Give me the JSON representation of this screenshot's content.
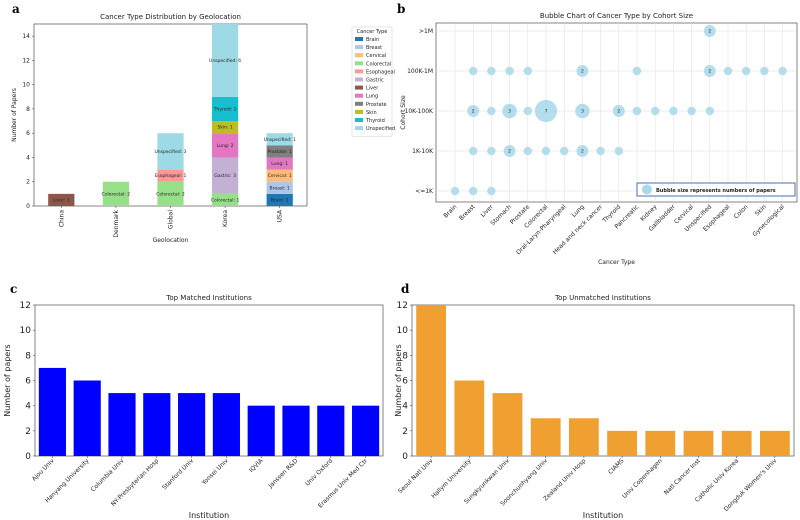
{
  "panel_labels": [
    "a",
    "b",
    "c",
    "d"
  ],
  "chart_data": [
    {
      "panel": "a",
      "type": "bar",
      "stacked": true,
      "title": "Cancer Type Distribution by Geolocation",
      "xlabel": "Geolocation",
      "ylabel": "Number of Papers",
      "ylim": [
        0,
        15
      ],
      "yticks": [
        0,
        2,
        4,
        6,
        8,
        10,
        12,
        14
      ],
      "categories": [
        "China",
        "Denmark",
        "Global",
        "Korea",
        "USA"
      ],
      "legend_title": "Cancer Type",
      "series": [
        {
          "name": "Brain",
          "color": "#1f77b4",
          "values": [
            0,
            0,
            0,
            0,
            1
          ]
        },
        {
          "name": "Breast",
          "color": "#aec7e8",
          "values": [
            0,
            0,
            0,
            0,
            1
          ]
        },
        {
          "name": "Cervical",
          "color": "#ffbb78",
          "values": [
            0,
            0,
            0,
            0,
            1
          ]
        },
        {
          "name": "Colorectal",
          "color": "#98df8a",
          "values": [
            0,
            2,
            2,
            1,
            0
          ]
        },
        {
          "name": "Esophageal",
          "color": "#ff9896",
          "values": [
            0,
            0,
            1,
            0,
            0
          ]
        },
        {
          "name": "Gastric",
          "color": "#c5b0d5",
          "values": [
            0,
            0,
            0,
            3,
            0
          ]
        },
        {
          "name": "Liver",
          "color": "#8c564b",
          "values": [
            1,
            0,
            0,
            0,
            0
          ]
        },
        {
          "name": "Lung",
          "color": "#e377c2",
          "values": [
            0,
            0,
            0,
            2,
            1
          ]
        },
        {
          "name": "Prostate",
          "color": "#7f7f7f",
          "values": [
            0,
            0,
            0,
            0,
            1
          ]
        },
        {
          "name": "Skin",
          "color": "#bcbd22",
          "values": [
            0,
            0,
            0,
            1,
            0
          ]
        },
        {
          "name": "Thyroid",
          "color": "#17becf",
          "values": [
            0,
            0,
            0,
            2,
            0
          ]
        },
        {
          "name": "Unspecified",
          "color": "#9edae5",
          "values": [
            0,
            0,
            3,
            6,
            1
          ]
        }
      ]
    },
    {
      "panel": "b",
      "type": "scatter",
      "title": "Bubble Chart of Cancer Type by Cohort Size",
      "xlabel": "Cancer Type",
      "ylabel": "Cohort Size",
      "categories": [
        "Brain",
        "Breast",
        "Liver",
        "Stomach",
        "Prostate",
        "Colorectal",
        "Oral-Laryn-Pharyngeal",
        "Lung",
        "Head and neck cancer",
        "Thyroid",
        "Pancreatic",
        "Kidney",
        "Gallbladder",
        "Cervical",
        "Unspecified",
        "Esophageal",
        "Colon",
        "Skin",
        "Gynecological"
      ],
      "y_categories": [
        "<=1K",
        "1K-10K",
        "10K-100K",
        "100K-1M",
        ">1M"
      ],
      "legend": "Bubble size represents numbers of papers",
      "color": "#a8d8ea",
      "points": [
        {
          "x": "Brain",
          "y": "<=1K",
          "n": 1
        },
        {
          "x": "Breast",
          "y": "<=1K",
          "n": 1
        },
        {
          "x": "Liver",
          "y": "<=1K",
          "n": 1
        },
        {
          "x": "Breast",
          "y": "1K-10K",
          "n": 1
        },
        {
          "x": "Liver",
          "y": "1K-10K",
          "n": 1
        },
        {
          "x": "Stomach",
          "y": "1K-10K",
          "n": 2
        },
        {
          "x": "Prostate",
          "y": "1K-10K",
          "n": 1
        },
        {
          "x": "Colorectal",
          "y": "1K-10K",
          "n": 1
        },
        {
          "x": "Oral-Laryn-Pharyngeal",
          "y": "1K-10K",
          "n": 1
        },
        {
          "x": "Lung",
          "y": "1K-10K",
          "n": 2
        },
        {
          "x": "Head and neck cancer",
          "y": "1K-10K",
          "n": 1
        },
        {
          "x": "Thyroid",
          "y": "1K-10K",
          "n": 1
        },
        {
          "x": "Breast",
          "y": "10K-100K",
          "n": 2
        },
        {
          "x": "Liver",
          "y": "10K-100K",
          "n": 1
        },
        {
          "x": "Stomach",
          "y": "10K-100K",
          "n": 3
        },
        {
          "x": "Prostate",
          "y": "10K-100K",
          "n": 1
        },
        {
          "x": "Colorectal",
          "y": "10K-100K",
          "n": 7
        },
        {
          "x": "Lung",
          "y": "10K-100K",
          "n": 3
        },
        {
          "x": "Thyroid",
          "y": "10K-100K",
          "n": 2
        },
        {
          "x": "Pancreatic",
          "y": "10K-100K",
          "n": 1
        },
        {
          "x": "Kidney",
          "y": "10K-100K",
          "n": 1
        },
        {
          "x": "Gallbladder",
          "y": "10K-100K",
          "n": 1
        },
        {
          "x": "Cervical",
          "y": "10K-100K",
          "n": 1
        },
        {
          "x": "Unspecified",
          "y": "10K-100K",
          "n": 1
        },
        {
          "x": "Breast",
          "y": "100K-1M",
          "n": 1
        },
        {
          "x": "Liver",
          "y": "100K-1M",
          "n": 1
        },
        {
          "x": "Stomach",
          "y": "100K-1M",
          "n": 1
        },
        {
          "x": "Prostate",
          "y": "100K-1M",
          "n": 1
        },
        {
          "x": "Lung",
          "y": "100K-1M",
          "n": 2
        },
        {
          "x": "Pancreatic",
          "y": "100K-1M",
          "n": 1
        },
        {
          "x": "Unspecified",
          "y": "100K-1M",
          "n": 2
        },
        {
          "x": "Esophageal",
          "y": "100K-1M",
          "n": 1
        },
        {
          "x": "Colon",
          "y": "100K-1M",
          "n": 1
        },
        {
          "x": "Skin",
          "y": "100K-1M",
          "n": 1
        },
        {
          "x": "Gynecological",
          "y": "100K-1M",
          "n": 1
        },
        {
          "x": "Unspecified",
          "y": ">1M",
          "n": 2
        }
      ]
    },
    {
      "panel": "c",
      "type": "bar",
      "title": "Top Matched Institutions",
      "xlabel": "Institution",
      "ylabel": "Number of papers",
      "ylim": [
        0,
        12
      ],
      "yticks": [
        0,
        2,
        4,
        6,
        8,
        10,
        12
      ],
      "color": "#0000ff",
      "categories": [
        "Ajou Univ",
        "Hanyang University",
        "Columbia Univ",
        "NY-Presbyterian Hosp",
        "Stanford Univ",
        "Yonsei Univ",
        "IQVIA",
        "Janssen R&D",
        "Univ Oxford",
        "Erasmus Univ Med Ctr"
      ],
      "values": [
        7,
        6,
        5,
        5,
        5,
        5,
        4,
        4,
        4,
        4
      ]
    },
    {
      "panel": "d",
      "type": "bar",
      "title": "Top Unmatched Institutions",
      "xlabel": "Institution",
      "ylabel": "Number of papers",
      "ylim": [
        0,
        12
      ],
      "yticks": [
        0,
        2,
        4,
        6,
        8,
        10,
        12
      ],
      "color": "#f0a030",
      "categories": [
        "Seoul Natl Univ",
        "Hallym University",
        "Sungkyunkwan Univ",
        "Soonchunhyang Univ",
        "Zealand Univ Hosp",
        "CIAMS",
        "Univ Copenhagen",
        "Natl Cancer Inst",
        "Catholic Univ Korea",
        "Dongduk Women's Univ"
      ],
      "values": [
        12,
        6,
        5,
        3,
        3,
        2,
        2,
        2,
        2,
        2
      ]
    }
  ]
}
